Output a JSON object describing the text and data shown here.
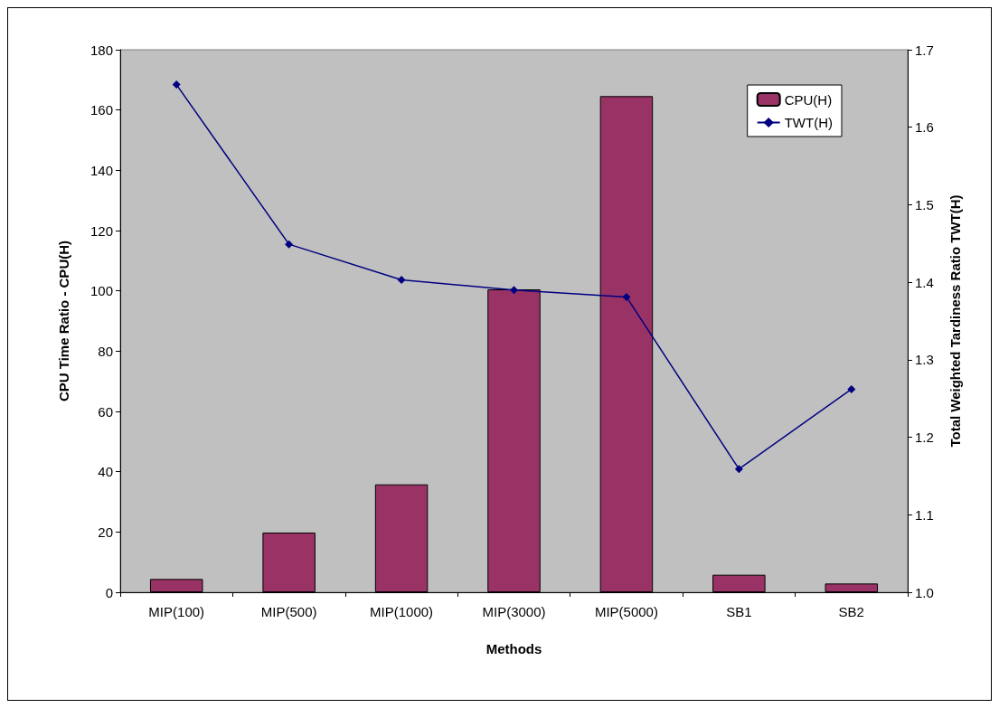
{
  "chart_data": {
    "type": "bar",
    "xlabel": "Methods",
    "ylabel": "CPU Time Ratio - CPU(H)",
    "y2label": "Total Weighted Tardiness Ratio TWT(H)",
    "categories": [
      "MIP(100)",
      "MIP(500)",
      "MIP(1000)",
      "MIP(3000)",
      "MIP(5000)",
      "SB1",
      "SB2"
    ],
    "series": [
      {
        "name": "CPU(H)",
        "color": "#993366",
        "values": [
          4.4,
          19.8,
          35.8,
          100.5,
          164.6,
          5.8,
          2.9
        ]
      },
      {
        "name": "TWT(H)",
        "type": "line",
        "axis": "y2",
        "color": "#000080",
        "marker": "diamond",
        "values": [
          1.655,
          1.449,
          1.403,
          1.39,
          1.381,
          1.159,
          1.262
        ]
      }
    ],
    "ylim": [
      0,
      180
    ],
    "yticks": [
      0,
      20,
      40,
      60,
      80,
      100,
      120,
      140,
      160,
      180
    ],
    "y2lim": [
      1.0,
      1.7
    ],
    "y2ticks": [
      {
        "value": 1,
        "label": "1.0"
      },
      1.1,
      1.2,
      1.3,
      1.4,
      1.5,
      1.6,
      1.7
    ],
    "grid": false,
    "legend": "top right"
  }
}
